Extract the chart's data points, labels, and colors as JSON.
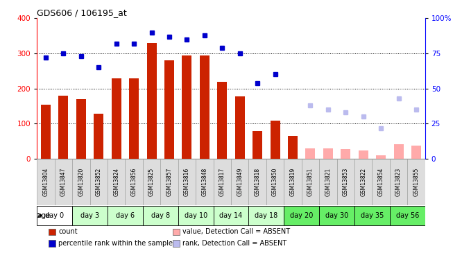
{
  "title": "GDS606 / 106195_at",
  "samples": [
    "GSM13804",
    "GSM13847",
    "GSM13820",
    "GSM13852",
    "GSM13824",
    "GSM13856",
    "GSM13825",
    "GSM13857",
    "GSM13816",
    "GSM13848",
    "GSM13817",
    "GSM13849",
    "GSM13818",
    "GSM13850",
    "GSM13819",
    "GSM13851",
    "GSM13821",
    "GSM13853",
    "GSM13822",
    "GSM13854",
    "GSM13823",
    "GSM13855"
  ],
  "day_groups": [
    {
      "label": "day 0",
      "indices": [
        0,
        1
      ],
      "color": "#ffffff"
    },
    {
      "label": "day 3",
      "indices": [
        2,
        3
      ],
      "color": "#ccffcc"
    },
    {
      "label": "day 6",
      "indices": [
        4,
        5
      ],
      "color": "#ccffcc"
    },
    {
      "label": "day 8",
      "indices": [
        6,
        7
      ],
      "color": "#ccffcc"
    },
    {
      "label": "day 10",
      "indices": [
        8,
        9
      ],
      "color": "#ccffcc"
    },
    {
      "label": "day 14",
      "indices": [
        10,
        11
      ],
      "color": "#ccffcc"
    },
    {
      "label": "day 18",
      "indices": [
        12,
        13
      ],
      "color": "#ccffcc"
    },
    {
      "label": "day 20",
      "indices": [
        14,
        15
      ],
      "color": "#66ee66"
    },
    {
      "label": "day 30",
      "indices": [
        16,
        17
      ],
      "color": "#66ee66"
    },
    {
      "label": "day 35",
      "indices": [
        18,
        19
      ],
      "color": "#66ee66"
    },
    {
      "label": "day 56",
      "indices": [
        20,
        21
      ],
      "color": "#66ee66"
    }
  ],
  "bar_values": [
    155,
    180,
    170,
    128,
    230,
    230,
    330,
    280,
    295,
    295,
    220,
    178,
    80,
    108,
    65,
    null,
    null,
    null,
    null,
    null,
    null,
    null
  ],
  "bar_absent": [
    null,
    null,
    null,
    null,
    null,
    null,
    null,
    null,
    null,
    null,
    null,
    null,
    null,
    null,
    null,
    30,
    30,
    28,
    25,
    10,
    42,
    38
  ],
  "rank_values": [
    72,
    75,
    73,
    65,
    82,
    82,
    90,
    87,
    85,
    88,
    79,
    75,
    54,
    60,
    null,
    null,
    null,
    null,
    null,
    null,
    null,
    null
  ],
  "rank_absent": [
    null,
    null,
    null,
    null,
    null,
    null,
    null,
    null,
    null,
    null,
    null,
    null,
    null,
    null,
    null,
    38,
    35,
    33,
    30,
    22,
    43,
    35
  ],
  "ylim_left": [
    0,
    400
  ],
  "ylim_right": [
    0,
    100
  ],
  "yticks_left": [
    0,
    100,
    200,
    300,
    400
  ],
  "ytick_labels_right": [
    "0",
    "25",
    "50",
    "75",
    "100%"
  ],
  "bar_color": "#cc2200",
  "bar_absent_color": "#ffaaaa",
  "rank_color": "#0000cc",
  "rank_absent_color": "#bbbbee",
  "bg_color": "#ffffff",
  "label_bg_color": "#dddddd",
  "legend_items": [
    {
      "label": "count",
      "color": "#cc2200"
    },
    {
      "label": "percentile rank within the sample",
      "color": "#0000cc"
    },
    {
      "label": "value, Detection Call = ABSENT",
      "color": "#ffaaaa"
    },
    {
      "label": "rank, Detection Call = ABSENT",
      "color": "#bbbbee"
    }
  ]
}
